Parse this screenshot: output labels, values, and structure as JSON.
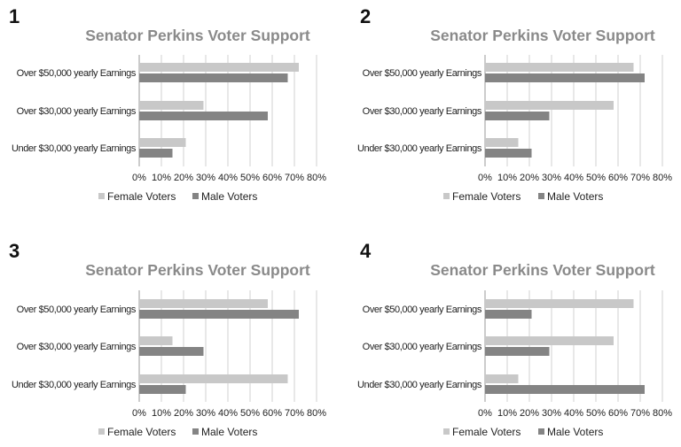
{
  "chart_data": [
    {
      "panel_number": "1",
      "type": "bar",
      "orientation": "horizontal",
      "title": "Senator Perkins Voter Support",
      "categories": [
        "Over $50,000 yearly Earnings",
        "Over $30,000 yearly Earnings",
        "Under $30,000 yearly Earnings"
      ],
      "series": [
        {
          "name": "Female Voters",
          "values": [
            72,
            29,
            21
          ]
        },
        {
          "name": "Male Voters",
          "values": [
            67,
            58,
            15
          ]
        }
      ],
      "xlim": [
        0,
        80
      ],
      "xticks": [
        "0%",
        "10%",
        "20%",
        "30%",
        "40%",
        "50%",
        "60%",
        "70%",
        "80%"
      ],
      "grid": true,
      "legend": "bottom"
    },
    {
      "panel_number": "2",
      "type": "bar",
      "orientation": "horizontal",
      "title": "Senator Perkins Voter Support",
      "categories": [
        "Over $50,000 yearly Earnings",
        "Over $30,000 yearly Earnings",
        "Under $30,000 yearly Earnings"
      ],
      "series": [
        {
          "name": "Female Voters",
          "values": [
            67,
            58,
            15
          ]
        },
        {
          "name": "Male Voters",
          "values": [
            72,
            29,
            21
          ]
        }
      ],
      "xlim": [
        0,
        80
      ],
      "xticks": [
        "0%",
        "10%",
        "20%",
        "30%",
        "40%",
        "50%",
        "60%",
        "70%",
        "80%"
      ],
      "grid": true,
      "legend": "bottom"
    },
    {
      "panel_number": "3",
      "type": "bar",
      "orientation": "horizontal",
      "title": "Senator Perkins Voter Support",
      "categories": [
        "Over $50,000 yearly Earnings",
        "Over $30,000 yearly Earnings",
        "Under $30,000 yearly Earnings"
      ],
      "series": [
        {
          "name": "Female Voters",
          "values": [
            58,
            15,
            67
          ]
        },
        {
          "name": "Male Voters",
          "values": [
            72,
            29,
            21
          ]
        }
      ],
      "xlim": [
        0,
        80
      ],
      "xticks": [
        "0%",
        "10%",
        "20%",
        "30%",
        "40%",
        "50%",
        "60%",
        "70%",
        "80%"
      ],
      "grid": true,
      "legend": "bottom"
    },
    {
      "panel_number": "4",
      "type": "bar",
      "orientation": "horizontal",
      "title": "Senator Perkins Voter Support",
      "categories": [
        "Over $50,000 yearly Earnings",
        "Over $30,000 yearly Earnings",
        "Under $30,000 yearly Earnings"
      ],
      "series": [
        {
          "name": "Female Voters",
          "values": [
            67,
            58,
            15
          ]
        },
        {
          "name": "Male Voters",
          "values": [
            21,
            29,
            72
          ]
        }
      ],
      "xlim": [
        0,
        80
      ],
      "xticks": [
        "0%",
        "10%",
        "20%",
        "30%",
        "40%",
        "50%",
        "60%",
        "70%",
        "80%"
      ],
      "grid": true,
      "legend": "bottom"
    }
  ],
  "colors": {
    "female": "#c8c8c8",
    "male": "#848484",
    "title": "#8a8a8a",
    "grid": "#d0d0d0",
    "axis": "#9a9a9a",
    "text": "#222222",
    "number": "#111111"
  }
}
